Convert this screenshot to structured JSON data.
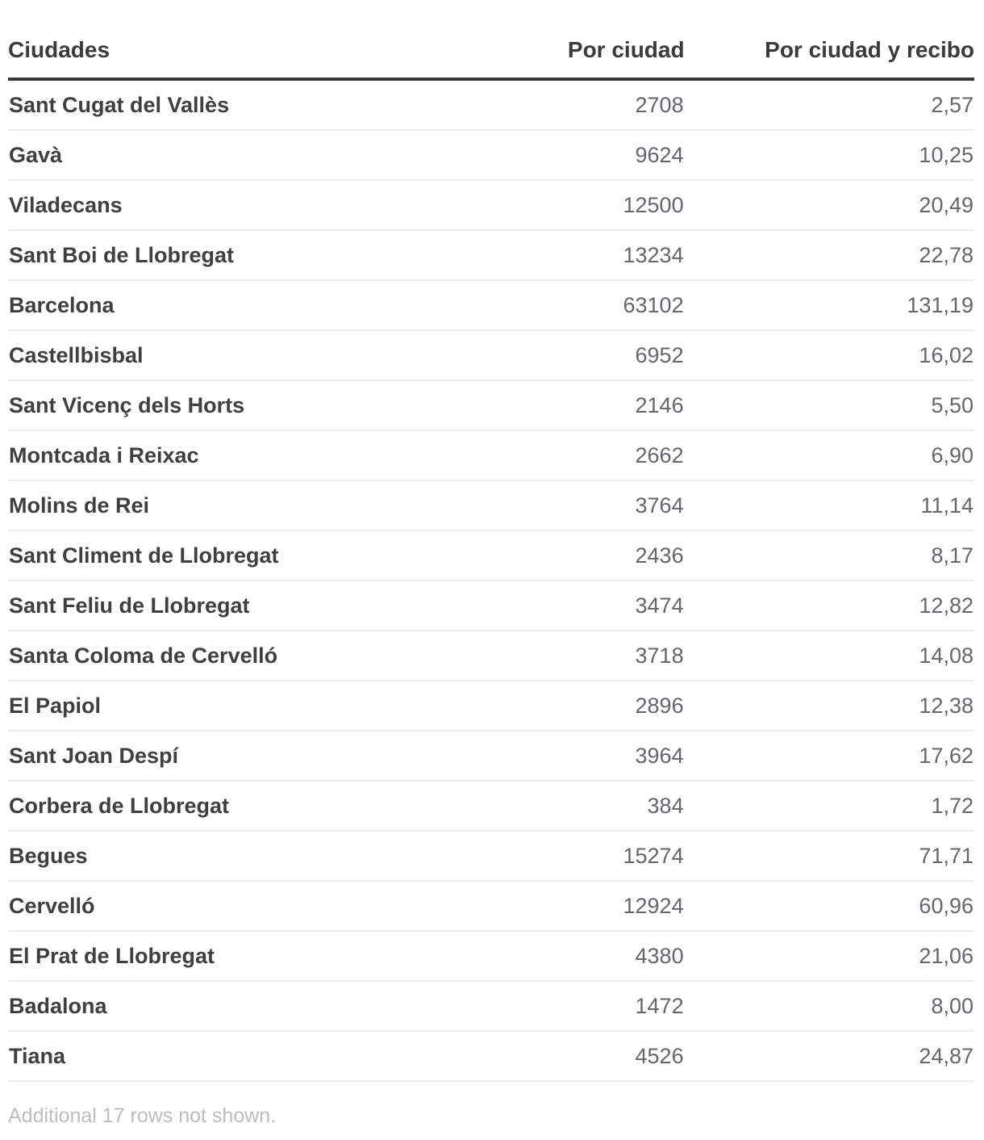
{
  "colors": {
    "header_text": "#3b3b3b",
    "header_rule": "#383838",
    "city_text": "#3f3f3f",
    "number_text": "#63666b",
    "row_divider": "#ececec",
    "footer_text": "#bdbdbd",
    "background": "#ffffff"
  },
  "table": {
    "headers": [
      "Ciudades",
      "Por ciudad",
      "Por ciudad y recibo"
    ],
    "rows": [
      {
        "city": "Sant Cugat del Vallès",
        "por_ciudad": "2708",
        "por_ciudad_y_recibo": "2,57"
      },
      {
        "city": "Gavà",
        "por_ciudad": "9624",
        "por_ciudad_y_recibo": "10,25"
      },
      {
        "city": "Viladecans",
        "por_ciudad": "12500",
        "por_ciudad_y_recibo": "20,49"
      },
      {
        "city": "Sant Boi de Llobregat",
        "por_ciudad": "13234",
        "por_ciudad_y_recibo": "22,78"
      },
      {
        "city": "Barcelona",
        "por_ciudad": "63102",
        "por_ciudad_y_recibo": "131,19"
      },
      {
        "city": "Castellbisbal",
        "por_ciudad": "6952",
        "por_ciudad_y_recibo": "16,02"
      },
      {
        "city": "Sant Vicenç dels Horts",
        "por_ciudad": "2146",
        "por_ciudad_y_recibo": "5,50"
      },
      {
        "city": "Montcada i Reixac",
        "por_ciudad": "2662",
        "por_ciudad_y_recibo": "6,90"
      },
      {
        "city": "Molins de Rei",
        "por_ciudad": "3764",
        "por_ciudad_y_recibo": "11,14"
      },
      {
        "city": "Sant Climent de Llobregat",
        "por_ciudad": "2436",
        "por_ciudad_y_recibo": "8,17"
      },
      {
        "city": "Sant Feliu de Llobregat",
        "por_ciudad": "3474",
        "por_ciudad_y_recibo": "12,82"
      },
      {
        "city": "Santa Coloma de Cervelló",
        "por_ciudad": "3718",
        "por_ciudad_y_recibo": "14,08"
      },
      {
        "city": "El Papiol",
        "por_ciudad": "2896",
        "por_ciudad_y_recibo": "12,38"
      },
      {
        "city": "Sant Joan Despí",
        "por_ciudad": "3964",
        "por_ciudad_y_recibo": "17,62"
      },
      {
        "city": "Corbera de Llobregat",
        "por_ciudad": "384",
        "por_ciudad_y_recibo": "1,72"
      },
      {
        "city": "Begues",
        "por_ciudad": "15274",
        "por_ciudad_y_recibo": "71,71"
      },
      {
        "city": "Cervelló",
        "por_ciudad": "12924",
        "por_ciudad_y_recibo": "60,96"
      },
      {
        "city": "El Prat de Llobregat",
        "por_ciudad": "4380",
        "por_ciudad_y_recibo": "21,06"
      },
      {
        "city": "Badalona",
        "por_ciudad": "1472",
        "por_ciudad_y_recibo": "8,00"
      },
      {
        "city": "Tiana",
        "por_ciudad": "4526",
        "por_ciudad_y_recibo": "24,87"
      }
    ]
  },
  "footer": {
    "note": "Additional 17 rows not shown."
  },
  "chart_data": {
    "type": "table",
    "title": "",
    "columns": [
      "Ciudades",
      "Por ciudad",
      "Por ciudad y recibo"
    ],
    "rows": [
      [
        "Sant Cugat del Vallès",
        2708,
        2.57
      ],
      [
        "Gavà",
        9624,
        10.25
      ],
      [
        "Viladecans",
        12500,
        20.49
      ],
      [
        "Sant Boi de Llobregat",
        13234,
        22.78
      ],
      [
        "Barcelona",
        63102,
        131.19
      ],
      [
        "Castellbisbal",
        6952,
        16.02
      ],
      [
        "Sant Vicenç dels Horts",
        2146,
        5.5
      ],
      [
        "Montcada i Reixac",
        2662,
        6.9
      ],
      [
        "Molins de Rei",
        3764,
        11.14
      ],
      [
        "Sant Climent de Llobregat",
        2436,
        8.17
      ],
      [
        "Sant Feliu de Llobregat",
        3474,
        12.82
      ],
      [
        "Santa Coloma de Cervelló",
        3718,
        14.08
      ],
      [
        "El Papiol",
        2896,
        12.38
      ],
      [
        "Sant Joan Despí",
        3964,
        17.62
      ],
      [
        "Corbera de Llobregat",
        384,
        1.72
      ],
      [
        "Begues",
        15274,
        71.71
      ],
      [
        "Cervelló",
        12924,
        60.96
      ],
      [
        "El Prat de Llobregat",
        4380,
        21.06
      ],
      [
        "Badalona",
        1472,
        8.0
      ],
      [
        "Tiana",
        4526,
        24.87
      ]
    ],
    "note": "Additional 17 rows not shown.",
    "decimal_separator": ",",
    "layout": {
      "city_align": "left",
      "numbers_align": "right",
      "grid": "horizontal-dividers"
    }
  }
}
